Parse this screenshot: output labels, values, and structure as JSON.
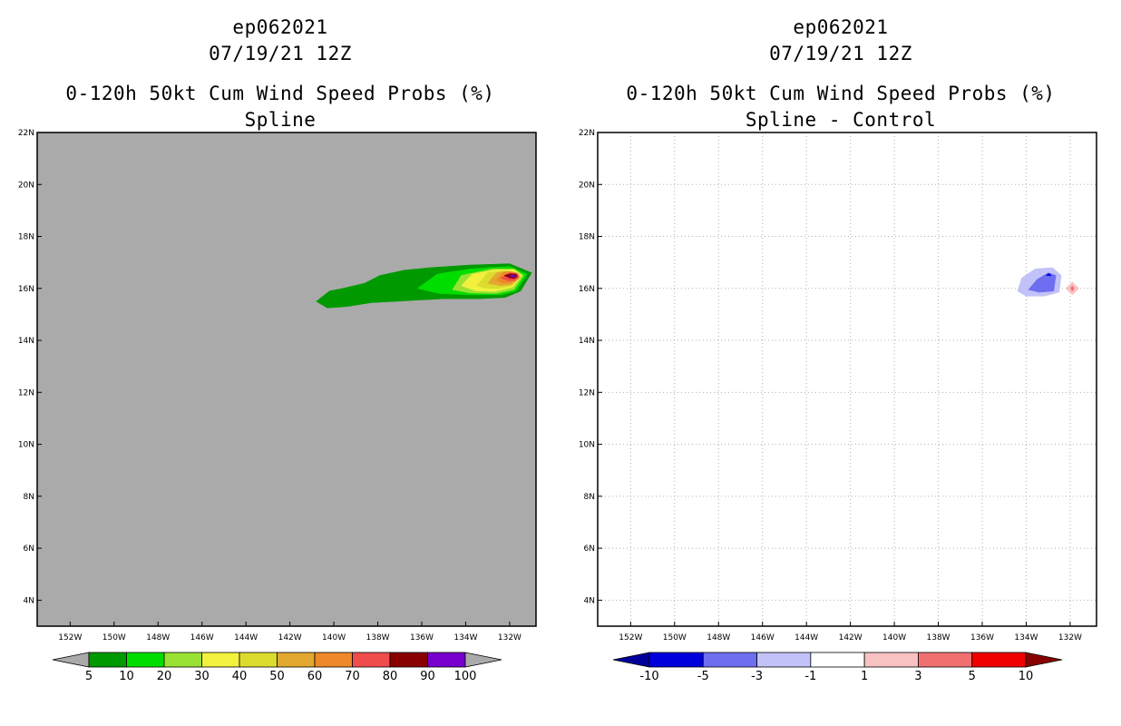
{
  "chart_data": [
    {
      "type": "heatmap",
      "title": [
        "ep062021",
        "07/19/21 12Z",
        "0-120h 50kt Cum Wind Speed Probs (%)",
        "Spline"
      ],
      "xlabel": "",
      "ylabel": "",
      "xlim": [
        -153.5,
        -130.8
      ],
      "ylim": [
        3,
        22
      ],
      "xticks": [
        "152W",
        "150W",
        "148W",
        "146W",
        "144W",
        "142W",
        "140W",
        "138W",
        "136W",
        "134W",
        "132W"
      ],
      "xtick_values": [
        -152,
        -150,
        -148,
        -146,
        -144,
        -142,
        -140,
        -138,
        -136,
        -134,
        -132
      ],
      "yticks": [
        "4N",
        "6N",
        "8N",
        "10N",
        "12N",
        "14N",
        "16N",
        "18N",
        "20N",
        "22N"
      ],
      "ytick_values": [
        4,
        6,
        8,
        10,
        12,
        14,
        16,
        18,
        20,
        22
      ],
      "grid": false,
      "background": "#aaaaaa",
      "colorbar": {
        "labels": [
          "5",
          "10",
          "20",
          "30",
          "40",
          "50",
          "60",
          "70",
          "80",
          "90",
          "100"
        ],
        "colors": [
          "#009900",
          "#00dd00",
          "#99e233",
          "#f1f13e",
          "#dcdc2e",
          "#e2a830",
          "#ee8828",
          "#ef4c4c",
          "#880000",
          "#7700cc"
        ],
        "under_color": "#aaaaaa",
        "over_color": "#aaaaaa"
      },
      "contours": [
        {
          "level": 5,
          "color": "#009900",
          "polygon": [
            [
              -140.8,
              15.5
            ],
            [
              -140.2,
              15.9
            ],
            [
              -139.6,
              16.0
            ],
            [
              -138.6,
              16.2
            ],
            [
              -137.9,
              16.5
            ],
            [
              -136.8,
              16.7
            ],
            [
              -135.6,
              16.8
            ],
            [
              -133.8,
              16.9
            ],
            [
              -132.0,
              16.95
            ],
            [
              -131.0,
              16.6
            ],
            [
              -131.5,
              15.9
            ],
            [
              -132.2,
              15.65
            ],
            [
              -133.4,
              15.6
            ],
            [
              -135.0,
              15.6
            ],
            [
              -136.2,
              15.55
            ],
            [
              -137.2,
              15.5
            ],
            [
              -138.3,
              15.45
            ],
            [
              -139.4,
              15.3
            ],
            [
              -140.3,
              15.25
            ]
          ]
        },
        {
          "level": 10,
          "color": "#00dd00",
          "polygon": [
            [
              -136.2,
              16.0
            ],
            [
              -135.3,
              16.55
            ],
            [
              -133.8,
              16.75
            ],
            [
              -132.0,
              16.85
            ],
            [
              -131.2,
              16.55
            ],
            [
              -131.7,
              15.9
            ],
            [
              -132.4,
              15.75
            ],
            [
              -133.8,
              15.75
            ],
            [
              -135.2,
              15.8
            ]
          ]
        },
        {
          "level": 20,
          "color": "#99e233",
          "polygon": [
            [
              -134.6,
              15.95
            ],
            [
              -134.2,
              16.5
            ],
            [
              -132.8,
              16.75
            ],
            [
              -131.8,
              16.75
            ],
            [
              -131.35,
              16.5
            ],
            [
              -131.8,
              15.95
            ],
            [
              -132.6,
              15.8
            ],
            [
              -133.8,
              15.82
            ]
          ]
        },
        {
          "level": 30,
          "color": "#f1f13e",
          "polygon": [
            [
              -134.2,
              16.1
            ],
            [
              -133.7,
              16.55
            ],
            [
              -132.6,
              16.72
            ],
            [
              -131.8,
              16.72
            ],
            [
              -131.45,
              16.5
            ],
            [
              -131.85,
              16.05
            ],
            [
              -132.7,
              15.88
            ],
            [
              -133.5,
              15.9
            ]
          ]
        },
        {
          "level": 40,
          "color": "#dcdc2e",
          "polygon": [
            [
              -133.5,
              16.1
            ],
            [
              -133.0,
              16.6
            ],
            [
              -132.2,
              16.7
            ],
            [
              -131.65,
              16.6
            ],
            [
              -131.5,
              16.45
            ],
            [
              -131.9,
              16.1
            ],
            [
              -132.5,
              16.0
            ],
            [
              -133.0,
              16.0
            ]
          ]
        },
        {
          "level": 50,
          "color": "#e2a830",
          "polygon": [
            [
              -133.0,
              16.2
            ],
            [
              -132.6,
              16.6
            ],
            [
              -132.0,
              16.66
            ],
            [
              -131.6,
              16.58
            ],
            [
              -131.55,
              16.4
            ],
            [
              -131.9,
              16.15
            ],
            [
              -132.4,
              16.1
            ]
          ]
        },
        {
          "level": 60,
          "color": "#ee8828",
          "polygon": [
            [
              -132.6,
              16.3
            ],
            [
              -132.3,
              16.62
            ],
            [
              -131.9,
              16.64
            ],
            [
              -131.6,
              16.55
            ],
            [
              -131.6,
              16.38
            ],
            [
              -131.95,
              16.22
            ],
            [
              -132.3,
              16.2
            ]
          ]
        },
        {
          "level": 70,
          "color": "#ef4c4c",
          "polygon": [
            [
              -132.4,
              16.4
            ],
            [
              -132.0,
              16.6
            ],
            [
              -131.7,
              16.58
            ],
            [
              -131.58,
              16.45
            ],
            [
              -131.75,
              16.3
            ],
            [
              -132.1,
              16.3
            ]
          ]
        },
        {
          "level": 80,
          "color": "#880000",
          "polygon": [
            [
              -132.25,
              16.5
            ],
            [
              -132.0,
              16.56
            ],
            [
              -131.7,
              16.55
            ],
            [
              -131.65,
              16.45
            ],
            [
              -131.8,
              16.38
            ],
            [
              -132.0,
              16.4
            ]
          ]
        },
        {
          "level": 90,
          "color": "#7700cc",
          "polygon": [
            [
              -132.0,
              16.5
            ],
            [
              -131.75,
              16.52
            ],
            [
              -131.7,
              16.45
            ],
            [
              -131.9,
              16.44
            ]
          ]
        }
      ]
    },
    {
      "type": "heatmap",
      "title": [
        "ep062021",
        "07/19/21 12Z",
        "0-120h 50kt Cum Wind Speed Probs (%)",
        "Spline - Control"
      ],
      "xlabel": "",
      "ylabel": "",
      "xlim": [
        -153.5,
        -130.8
      ],
      "ylim": [
        3,
        22
      ],
      "xticks": [
        "152W",
        "150W",
        "148W",
        "146W",
        "144W",
        "142W",
        "140W",
        "138W",
        "136W",
        "134W",
        "132W"
      ],
      "xtick_values": [
        -152,
        -150,
        -148,
        -146,
        -144,
        -142,
        -140,
        -138,
        -136,
        -134,
        -132
      ],
      "yticks": [
        "4N",
        "6N",
        "8N",
        "10N",
        "12N",
        "14N",
        "16N",
        "18N",
        "20N",
        "22N"
      ],
      "ytick_values": [
        4,
        6,
        8,
        10,
        12,
        14,
        16,
        18,
        20,
        22
      ],
      "grid": true,
      "background": "#ffffff",
      "colorbar": {
        "labels": [
          "-10",
          "-5",
          "-3",
          "-1",
          "1",
          "3",
          "5",
          "10"
        ],
        "colors": [
          "#0000dd",
          "#6e6ef0",
          "#c2c2f8",
          "#ffffff",
          "#f8c2c2",
          "#f07070",
          "#f00000"
        ],
        "under_color": "#000099",
        "over_color": "#880000"
      },
      "contours": [
        {
          "level": -1,
          "color": "#c2c2f8",
          "polygon": [
            [
              -134.4,
              15.9
            ],
            [
              -134.2,
              16.4
            ],
            [
              -133.6,
              16.75
            ],
            [
              -132.8,
              16.8
            ],
            [
              -132.4,
              16.5
            ],
            [
              -132.5,
              15.85
            ],
            [
              -133.2,
              15.7
            ],
            [
              -134.0,
              15.7
            ]
          ]
        },
        {
          "level": -3,
          "color": "#6e6ef0",
          "polygon": [
            [
              -133.9,
              15.95
            ],
            [
              -133.5,
              16.35
            ],
            [
              -133.0,
              16.6
            ],
            [
              -132.65,
              16.5
            ],
            [
              -132.75,
              15.9
            ],
            [
              -133.4,
              15.85
            ]
          ]
        },
        {
          "level": -5,
          "color": "#0000dd",
          "polygon": [
            [
              -133.1,
              16.5
            ],
            [
              -132.95,
              16.58
            ],
            [
              -132.85,
              16.48
            ]
          ]
        },
        {
          "level": 1,
          "color": "#f8c2c2",
          "polygon": [
            [
              -132.2,
              16.0
            ],
            [
              -131.9,
              16.25
            ],
            [
              -131.6,
              16.0
            ],
            [
              -131.9,
              15.75
            ]
          ]
        },
        {
          "level": 3,
          "color": "#f07070",
          "polygon": [
            [
              -131.98,
              16.0
            ],
            [
              -131.9,
              16.1
            ],
            [
              -131.82,
              16.0
            ],
            [
              -131.9,
              15.9
            ]
          ]
        }
      ]
    }
  ]
}
